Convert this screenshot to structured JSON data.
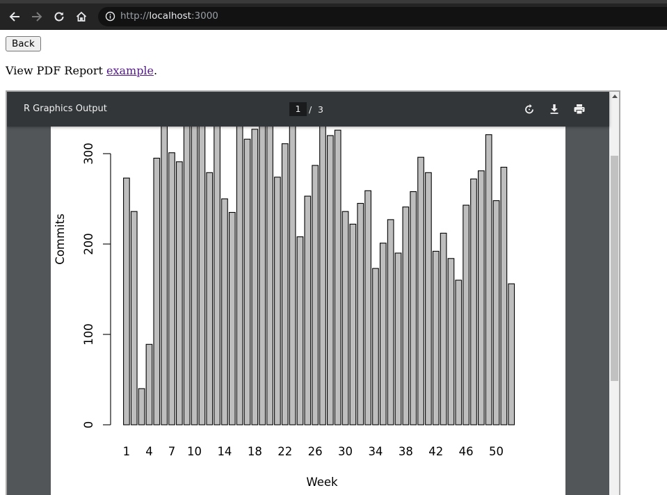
{
  "browser": {
    "url_host": "localhost",
    "url_port": ":3000",
    "url_scheme": "http://"
  },
  "page": {
    "back_label": "Back",
    "intro_text": "View PDF Report ",
    "link_text": "example",
    "intro_end": "."
  },
  "viewer": {
    "title": "R Graphics Output",
    "current_page": "1",
    "page_separator": "/",
    "total_pages": "3"
  },
  "chart_data": {
    "type": "bar",
    "xlabel": "Week",
    "ylabel": "Commits",
    "ylim": [
      0,
      330
    ],
    "yticks": [
      0,
      100,
      200,
      300
    ],
    "xtick_labels": [
      "1",
      "4",
      "7",
      "10",
      "14",
      "18",
      "22",
      "26",
      "30",
      "34",
      "38",
      "42",
      "46",
      "50"
    ],
    "xtick_weeks": [
      1,
      4,
      7,
      10,
      14,
      18,
      22,
      26,
      30,
      34,
      38,
      42,
      46,
      50
    ],
    "weeks": [
      1,
      2,
      3,
      4,
      5,
      6,
      7,
      8,
      9,
      10,
      11,
      12,
      13,
      14,
      15,
      16,
      17,
      18,
      19,
      20,
      21,
      22,
      23,
      24,
      25,
      26,
      27,
      28,
      29,
      30,
      31,
      32,
      33,
      34,
      35,
      36,
      37,
      38,
      39,
      40,
      41,
      42,
      43,
      44,
      45,
      46,
      47,
      48,
      49,
      50,
      51,
      52
    ],
    "values": [
      273,
      236,
      40,
      89,
      295,
      335,
      301,
      291,
      335,
      335,
      335,
      279,
      335,
      250,
      235,
      335,
      316,
      327,
      335,
      335,
      274,
      311,
      335,
      208,
      253,
      287,
      335,
      320,
      326,
      236,
      222,
      245,
      259,
      173,
      201,
      227,
      190,
      241,
      258,
      296,
      279,
      192,
      212,
      184,
      160,
      243,
      272,
      281,
      321,
      248,
      285,
      156
    ],
    "colors": {
      "bar_fill": "#bebebe",
      "bar_stroke": "#000000"
    }
  }
}
